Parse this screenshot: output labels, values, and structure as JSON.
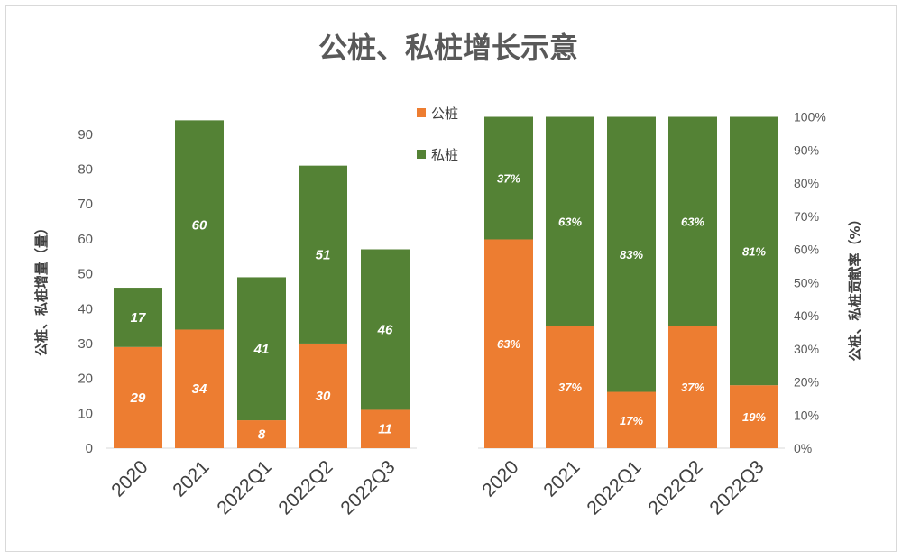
{
  "chart_data": {
    "type": "bar",
    "stacked": true,
    "title": "公桩、私桩增长示意",
    "legend": [
      "公桩",
      "私桩"
    ],
    "colors": {
      "public": "#ED7D31",
      "private": "#548235"
    },
    "left": {
      "categories": [
        "2020",
        "2021",
        "2022Q1",
        "2022Q2",
        "2022Q3"
      ],
      "ylabel": "公桩、私桩增量（量）",
      "ylim": [
        0,
        95
      ],
      "ticks": [
        "0",
        "10",
        "20",
        "30",
        "40",
        "50",
        "60",
        "70",
        "80",
        "90"
      ],
      "tick_values": [
        0,
        10,
        20,
        30,
        40,
        50,
        60,
        70,
        80,
        90
      ],
      "series": [
        {
          "name": "公桩",
          "values": [
            29,
            34,
            8,
            30,
            11
          ],
          "labels": [
            "29",
            "34",
            "8",
            "30",
            "11"
          ]
        },
        {
          "name": "私桩",
          "values": [
            17,
            60,
            41,
            51,
            46
          ],
          "labels": [
            "17",
            "60",
            "41",
            "51",
            "46"
          ]
        }
      ]
    },
    "right": {
      "categories": [
        "2020",
        "2021",
        "2022Q1",
        "2022Q2",
        "2022Q3"
      ],
      "ylabel": "公桩、私桩贡献率（%）",
      "ylim": [
        0,
        100
      ],
      "ticks": [
        "0%",
        "10%",
        "20%",
        "30%",
        "40%",
        "50%",
        "60%",
        "70%",
        "80%",
        "90%",
        "100%"
      ],
      "tick_values": [
        0,
        10,
        20,
        30,
        40,
        50,
        60,
        70,
        80,
        90,
        100
      ],
      "series": [
        {
          "name": "公桩",
          "values": [
            63,
            37,
            17,
            37,
            19
          ],
          "labels": [
            "63%",
            "37%",
            "17%",
            "37%",
            "19%"
          ]
        },
        {
          "name": "私桩",
          "values": [
            37,
            63,
            83,
            63,
            81
          ],
          "labels": [
            "37%",
            "63%",
            "83%",
            "63%",
            "81%"
          ]
        }
      ]
    }
  }
}
